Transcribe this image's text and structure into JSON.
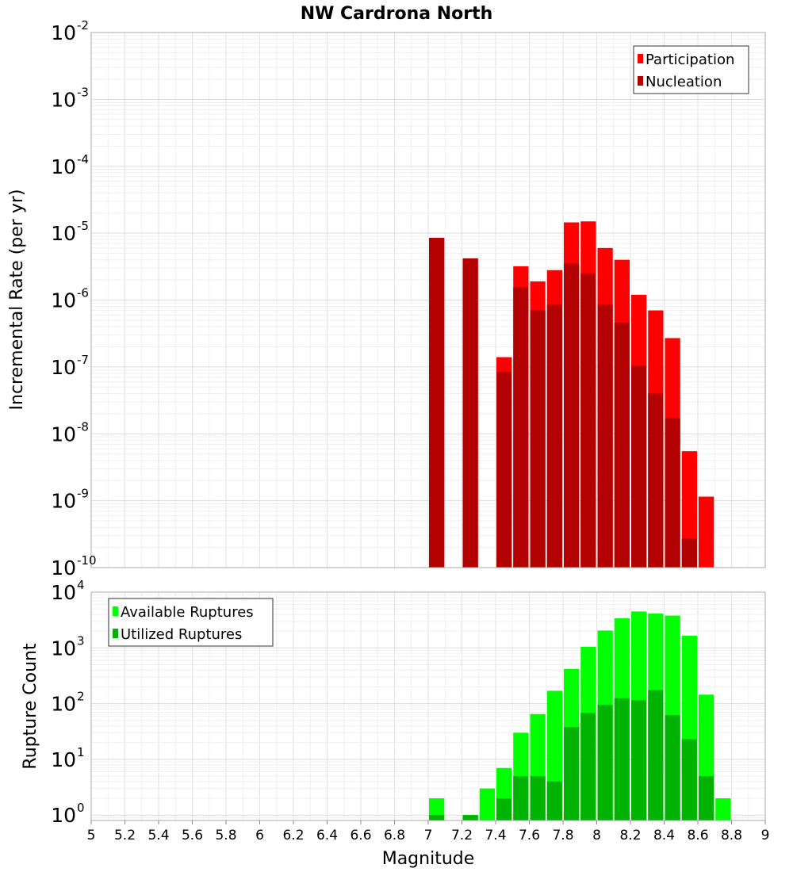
{
  "chart_data": {
    "type": "bar",
    "title": "NW Cardrona North",
    "xlabel": "Magnitude",
    "x_range": [
      5,
      9
    ],
    "x_ticks": [
      "5",
      "5.2",
      "5.4",
      "5.6",
      "5.8",
      "6",
      "6.2",
      "6.4",
      "6.6",
      "6.8",
      "7",
      "7.2",
      "7.4",
      "7.6",
      "7.8",
      "8",
      "8.2",
      "8.4",
      "8.6",
      "8.8",
      "9"
    ],
    "bin_width": 0.1,
    "grid": true,
    "panels": [
      {
        "id": "rate",
        "ylabel": "Incremental Rate (per yr)",
        "y_scale": "log",
        "ylim": [
          1e-10,
          0.01
        ],
        "y_tick_base": "10",
        "y_tick_exponents": [
          "-10",
          "-9",
          "-8",
          "-7",
          "-6",
          "-5",
          "-4",
          "-3",
          "-2"
        ],
        "legend_position": "top-right",
        "series": [
          {
            "name": "Participation",
            "color": "#ff0000",
            "points": [
              {
                "x": 7.05,
                "y": 8.5e-06
              },
              {
                "x": 7.25,
                "y": 4.2e-06
              },
              {
                "x": 7.45,
                "y": 1.4e-07
              },
              {
                "x": 7.55,
                "y": 3.2e-06
              },
              {
                "x": 7.65,
                "y": 1.9e-06
              },
              {
                "x": 7.75,
                "y": 2.8e-06
              },
              {
                "x": 7.85,
                "y": 1.45e-05
              },
              {
                "x": 7.95,
                "y": 1.5e-05
              },
              {
                "x": 8.05,
                "y": 6e-06
              },
              {
                "x": 8.15,
                "y": 4e-06
              },
              {
                "x": 8.25,
                "y": 1.2e-06
              },
              {
                "x": 8.35,
                "y": 7e-07
              },
              {
                "x": 8.45,
                "y": 2.7e-07
              },
              {
                "x": 8.55,
                "y": 5.5e-09
              },
              {
                "x": 8.65,
                "y": 1.15e-09
              }
            ]
          },
          {
            "name": "Nucleation",
            "color": "#b30000",
            "points": [
              {
                "x": 7.05,
                "y": 8.5e-06
              },
              {
                "x": 7.25,
                "y": 4.2e-06
              },
              {
                "x": 7.45,
                "y": 8.5e-08
              },
              {
                "x": 7.55,
                "y": 1.55e-06
              },
              {
                "x": 7.65,
                "y": 7e-07
              },
              {
                "x": 7.75,
                "y": 8.5e-07
              },
              {
                "x": 7.85,
                "y": 3.5e-06
              },
              {
                "x": 7.95,
                "y": 2.5e-06
              },
              {
                "x": 8.05,
                "y": 8.5e-07
              },
              {
                "x": 8.15,
                "y": 4.6e-07
              },
              {
                "x": 8.25,
                "y": 1.05e-07
              },
              {
                "x": 8.35,
                "y": 4e-08
              },
              {
                "x": 8.45,
                "y": 1.7e-08
              },
              {
                "x": 8.55,
                "y": 2.7e-10
              }
            ]
          }
        ]
      },
      {
        "id": "count",
        "ylabel": "Rupture Count",
        "y_scale": "log",
        "ylim": [
          0.8,
          10000
        ],
        "y_tick_base": "10",
        "y_tick_exponents": [
          "0",
          "1",
          "2",
          "3",
          "4"
        ],
        "legend_position": "top-left",
        "series": [
          {
            "name": "Available Ruptures",
            "color": "#00ff00",
            "points": [
              {
                "x": 7.05,
                "y": 2
              },
              {
                "x": 7.25,
                "y": 1
              },
              {
                "x": 7.35,
                "y": 3
              },
              {
                "x": 7.45,
                "y": 7
              },
              {
                "x": 7.55,
                "y": 30
              },
              {
                "x": 7.65,
                "y": 65
              },
              {
                "x": 7.75,
                "y": 170
              },
              {
                "x": 7.85,
                "y": 420
              },
              {
                "x": 7.95,
                "y": 1050
              },
              {
                "x": 8.05,
                "y": 2050
              },
              {
                "x": 8.15,
                "y": 3400
              },
              {
                "x": 8.25,
                "y": 4500
              },
              {
                "x": 8.35,
                "y": 4150
              },
              {
                "x": 8.45,
                "y": 3800
              },
              {
                "x": 8.55,
                "y": 1650
              },
              {
                "x": 8.65,
                "y": 145
              },
              {
                "x": 8.75,
                "y": 2
              }
            ]
          },
          {
            "name": "Utilized Ruptures",
            "color": "#00b300",
            "points": [
              {
                "x": 7.05,
                "y": 1
              },
              {
                "x": 7.25,
                "y": 1
              },
              {
                "x": 7.45,
                "y": 2
              },
              {
                "x": 7.55,
                "y": 5
              },
              {
                "x": 7.65,
                "y": 5
              },
              {
                "x": 7.75,
                "y": 4
              },
              {
                "x": 7.85,
                "y": 38
              },
              {
                "x": 7.95,
                "y": 68
              },
              {
                "x": 8.05,
                "y": 95
              },
              {
                "x": 8.15,
                "y": 125
              },
              {
                "x": 8.25,
                "y": 115
              },
              {
                "x": 8.35,
                "y": 175
              },
              {
                "x": 8.45,
                "y": 62
              },
              {
                "x": 8.55,
                "y": 23
              },
              {
                "x": 8.65,
                "y": 5
              }
            ]
          }
        ]
      }
    ]
  }
}
